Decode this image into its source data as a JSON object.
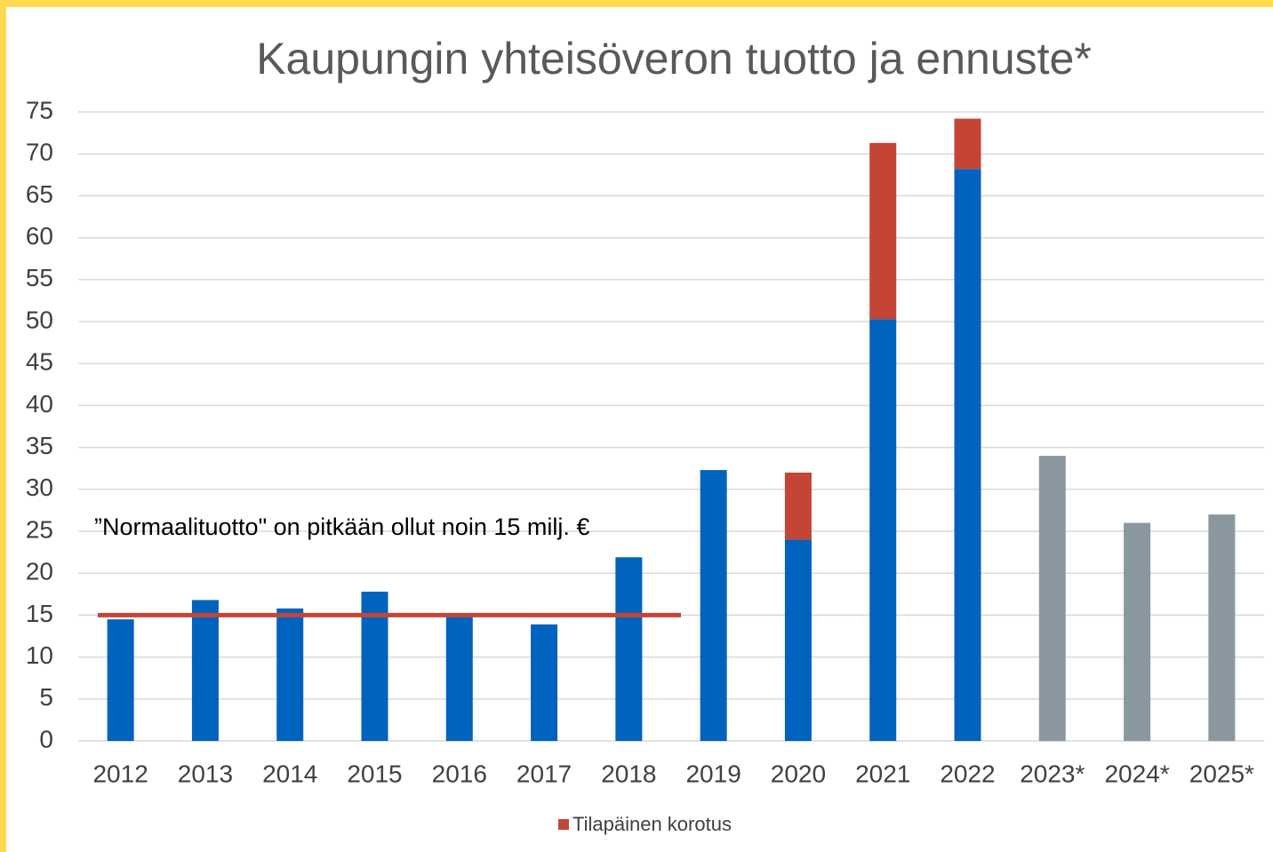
{
  "chart_data": {
    "type": "bar",
    "stacked": true,
    "title": "Kaupungin yhteisöveron tuotto ja ennuste*",
    "categories": [
      "2012",
      "2013",
      "2014",
      "2015",
      "2016",
      "2017",
      "2018",
      "2019",
      "2020",
      "2021",
      "2022",
      "2023*",
      "2024*",
      "2025*"
    ],
    "series": [
      {
        "colors": [
          "#0063be",
          "#0063be",
          "#0063be",
          "#0063be",
          "#0063be",
          "#0063be",
          "#0063be",
          "#0063be",
          "#0063be",
          "#0063be",
          "#0063be",
          "#8b979f",
          "#8b979f",
          "#8b979f"
        ],
        "values": [
          14.5,
          16.8,
          15.8,
          17.8,
          15.2,
          13.9,
          21.9,
          32.3,
          24,
          50.3,
          68.2,
          34,
          26,
          27
        ]
      },
      {
        "name": "Tilapäinen korotus",
        "color": "#c44536",
        "values": [
          null,
          null,
          null,
          null,
          null,
          null,
          null,
          null,
          8,
          21,
          6,
          null,
          null,
          null
        ]
      }
    ],
    "reference_line": {
      "value": 15,
      "color": "#c44536",
      "label": "”Normaalituotto\" on pitkään ollut noin 15 milj. €"
    },
    "ylim": [
      0,
      75
    ],
    "yticks": [
      0,
      5,
      10,
      15,
      20,
      25,
      30,
      35,
      40,
      45,
      50,
      55,
      60,
      65,
      70,
      75
    ],
    "grid": true,
    "legend": "bottom"
  }
}
